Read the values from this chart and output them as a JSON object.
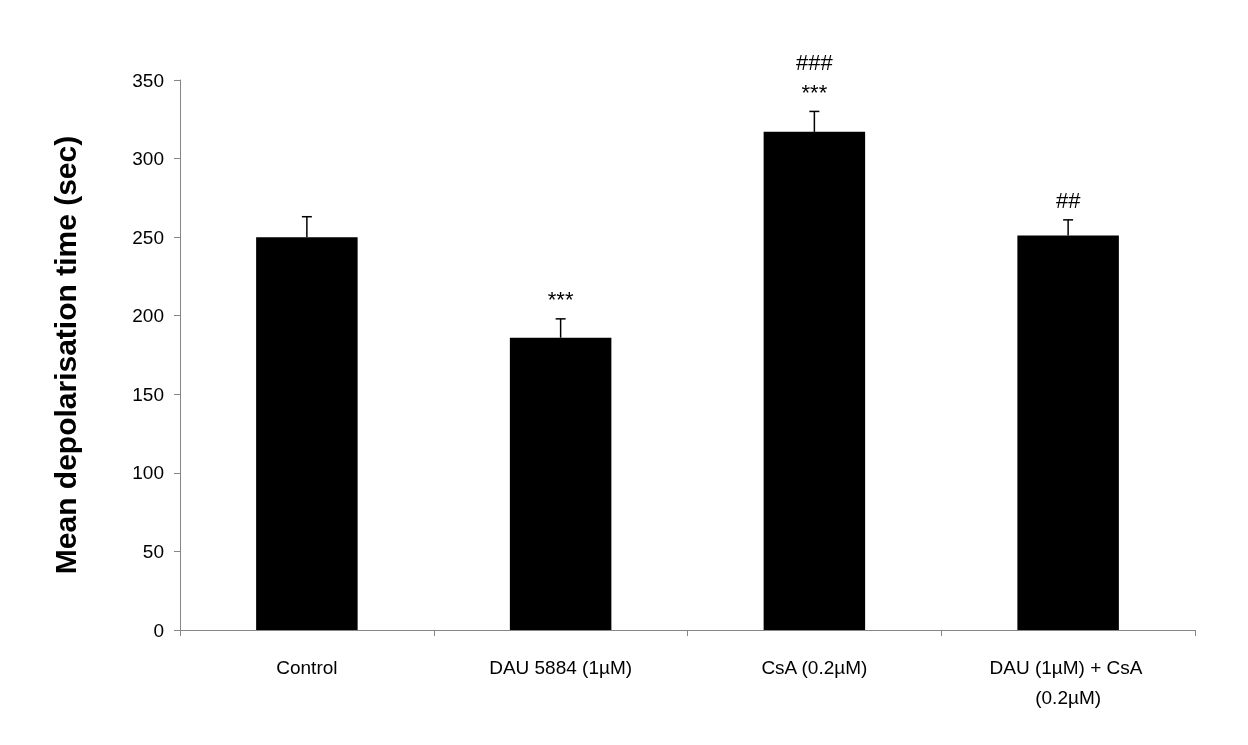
{
  "chart_data": {
    "type": "bar",
    "ylabel": "Mean depolarisation time (sec)",
    "categories": [
      "Control",
      "DAU 5884 (1µM)",
      "CsA (0.2µM)",
      "DAU (1µM) + CsA (0.2µM)"
    ],
    "values": [
      250,
      186,
      317,
      251
    ],
    "errors": [
      13,
      12,
      13,
      10
    ],
    "color": "#000000",
    "ylim": [
      0,
      350
    ],
    "yticks": [
      0,
      50,
      100,
      150,
      200,
      250,
      300,
      350
    ],
    "grid": false,
    "annotations": [
      {
        "text": "***",
        "x": "DAU 5884 (1µM)",
        "y": 198
      },
      {
        "text": "***",
        "x": "CsA (0.2µM)",
        "y": 330
      },
      {
        "text": "###",
        "x": "CsA (0.2µM)",
        "y": 330
      },
      {
        "text": "##",
        "x": "DAU (1µM) + CsA (0.2µM)",
        "y": 261
      }
    ]
  }
}
